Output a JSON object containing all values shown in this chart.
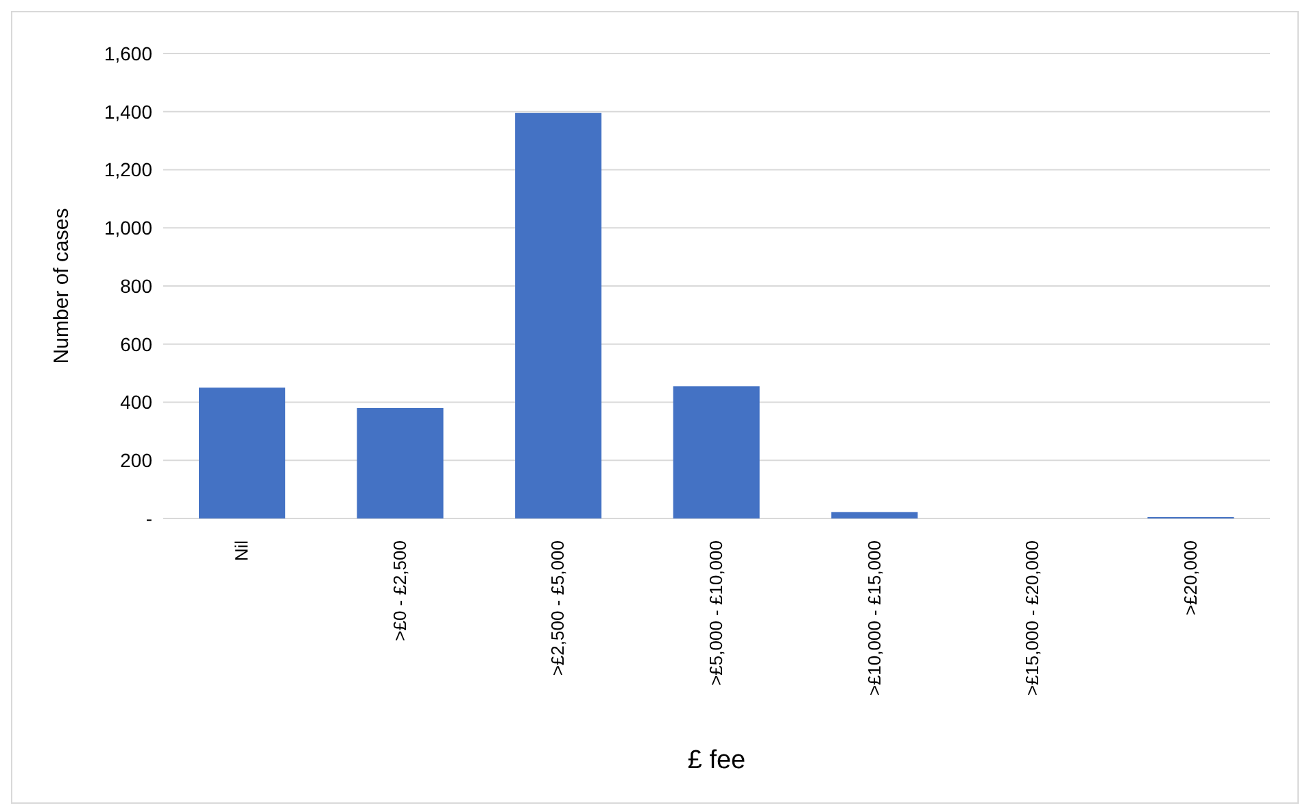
{
  "chart_data": {
    "type": "bar",
    "xlabel": "£ fee",
    "ylabel": "Number of cases",
    "categories": [
      "Nil",
      ">£0 - £2,500",
      ">£2,500 - £5,000",
      ">£5,000 - £10,000",
      ">£10,000 - £15,000",
      ">£15,000 - £20,000",
      ">£20,000"
    ],
    "values": [
      450,
      380,
      1395,
      455,
      22,
      0,
      5
    ],
    "color": "#4472c4",
    "ylim": [
      0,
      1600
    ],
    "yticks": [
      {
        "value": 0,
        "label": "-"
      },
      200,
      400,
      600,
      800,
      {
        "value": 1000,
        "label": "1,000"
      },
      {
        "value": 1200,
        "label": "1,200"
      },
      {
        "value": 1400,
        "label": "1,400"
      },
      {
        "value": 1600,
        "label": "1,600"
      }
    ],
    "grid": "y"
  }
}
